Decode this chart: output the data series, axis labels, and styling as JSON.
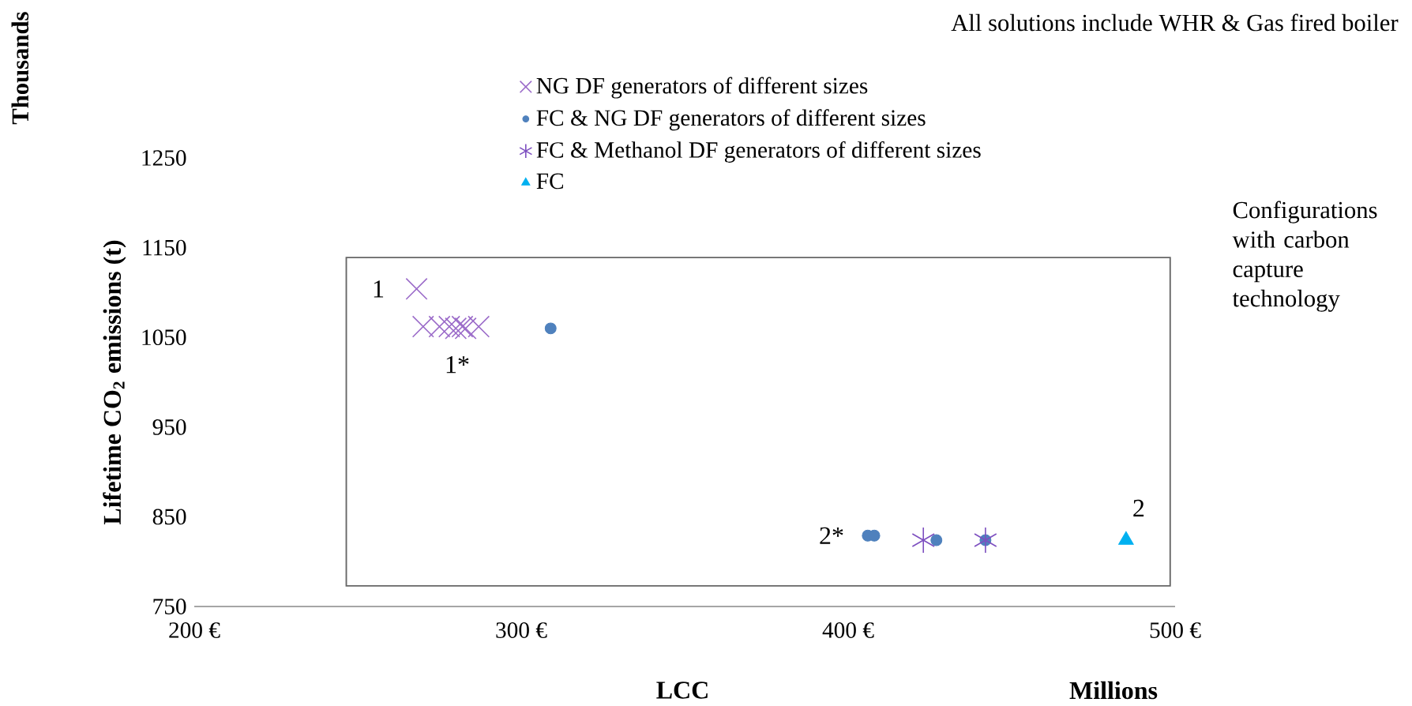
{
  "chart_data": {
    "type": "scatter",
    "title": "All solutions include WHR & Gas fired boiler",
    "xlabel": "LCC",
    "ylabel": "Lifetime CO$_{2}$ emissions (t)",
    "xlim": [
      200,
      500
    ],
    "ylim": [
      750,
      1250
    ],
    "xticks": [
      {
        "value": 200,
        "label": "200 €"
      },
      {
        "value": 300,
        "label": "300 €"
      },
      {
        "value": 400,
        "label": "400 €"
      },
      {
        "value": 500,
        "label": "500 €"
      }
    ],
    "yticks": [
      750,
      850,
      950,
      1050,
      1150,
      1250
    ],
    "grid": false,
    "legend": "top",
    "series": [
      {
        "name": "NG DF generators of different sizes",
        "color": "#9b6bc9",
        "marker": "cross",
        "x": [
          268,
          270,
          275,
          278,
          280,
          282,
          283,
          287
        ],
        "values": [
          1104,
          1062,
          1062,
          1062,
          1060,
          1062,
          1060,
          1062
        ]
      },
      {
        "name": "FC & NG DF generators of different sizes",
        "color": "#4f81bd",
        "marker": "circle",
        "x": [
          309,
          406,
          408,
          427,
          442
        ],
        "values": [
          1060,
          829,
          829,
          824,
          824
        ]
      },
      {
        "name": "FC & Methanol DF generators of different sizes",
        "color": "#7d4fc0",
        "x": [
          423,
          442
        ],
        "values": [
          824,
          824
        ]
      },
      {
        "name": "FC",
        "color": "#00b0f0",
        "marker": "triangle",
        "x": [
          485
        ],
        "values": [
          824
        ]
      }
    ],
    "annotations": [
      {
        "text": "1",
        "x": 268,
        "y": 1104
      },
      {
        "text": "1*",
        "x": 283,
        "y": 1060
      },
      {
        "text": "2*",
        "x": 406,
        "y": 829
      },
      {
        "text": "2",
        "x": 485,
        "y": 824
      },
      "Configurations with carbon capture technology",
      "Thousands",
      "Millions"
    ]
  }
}
